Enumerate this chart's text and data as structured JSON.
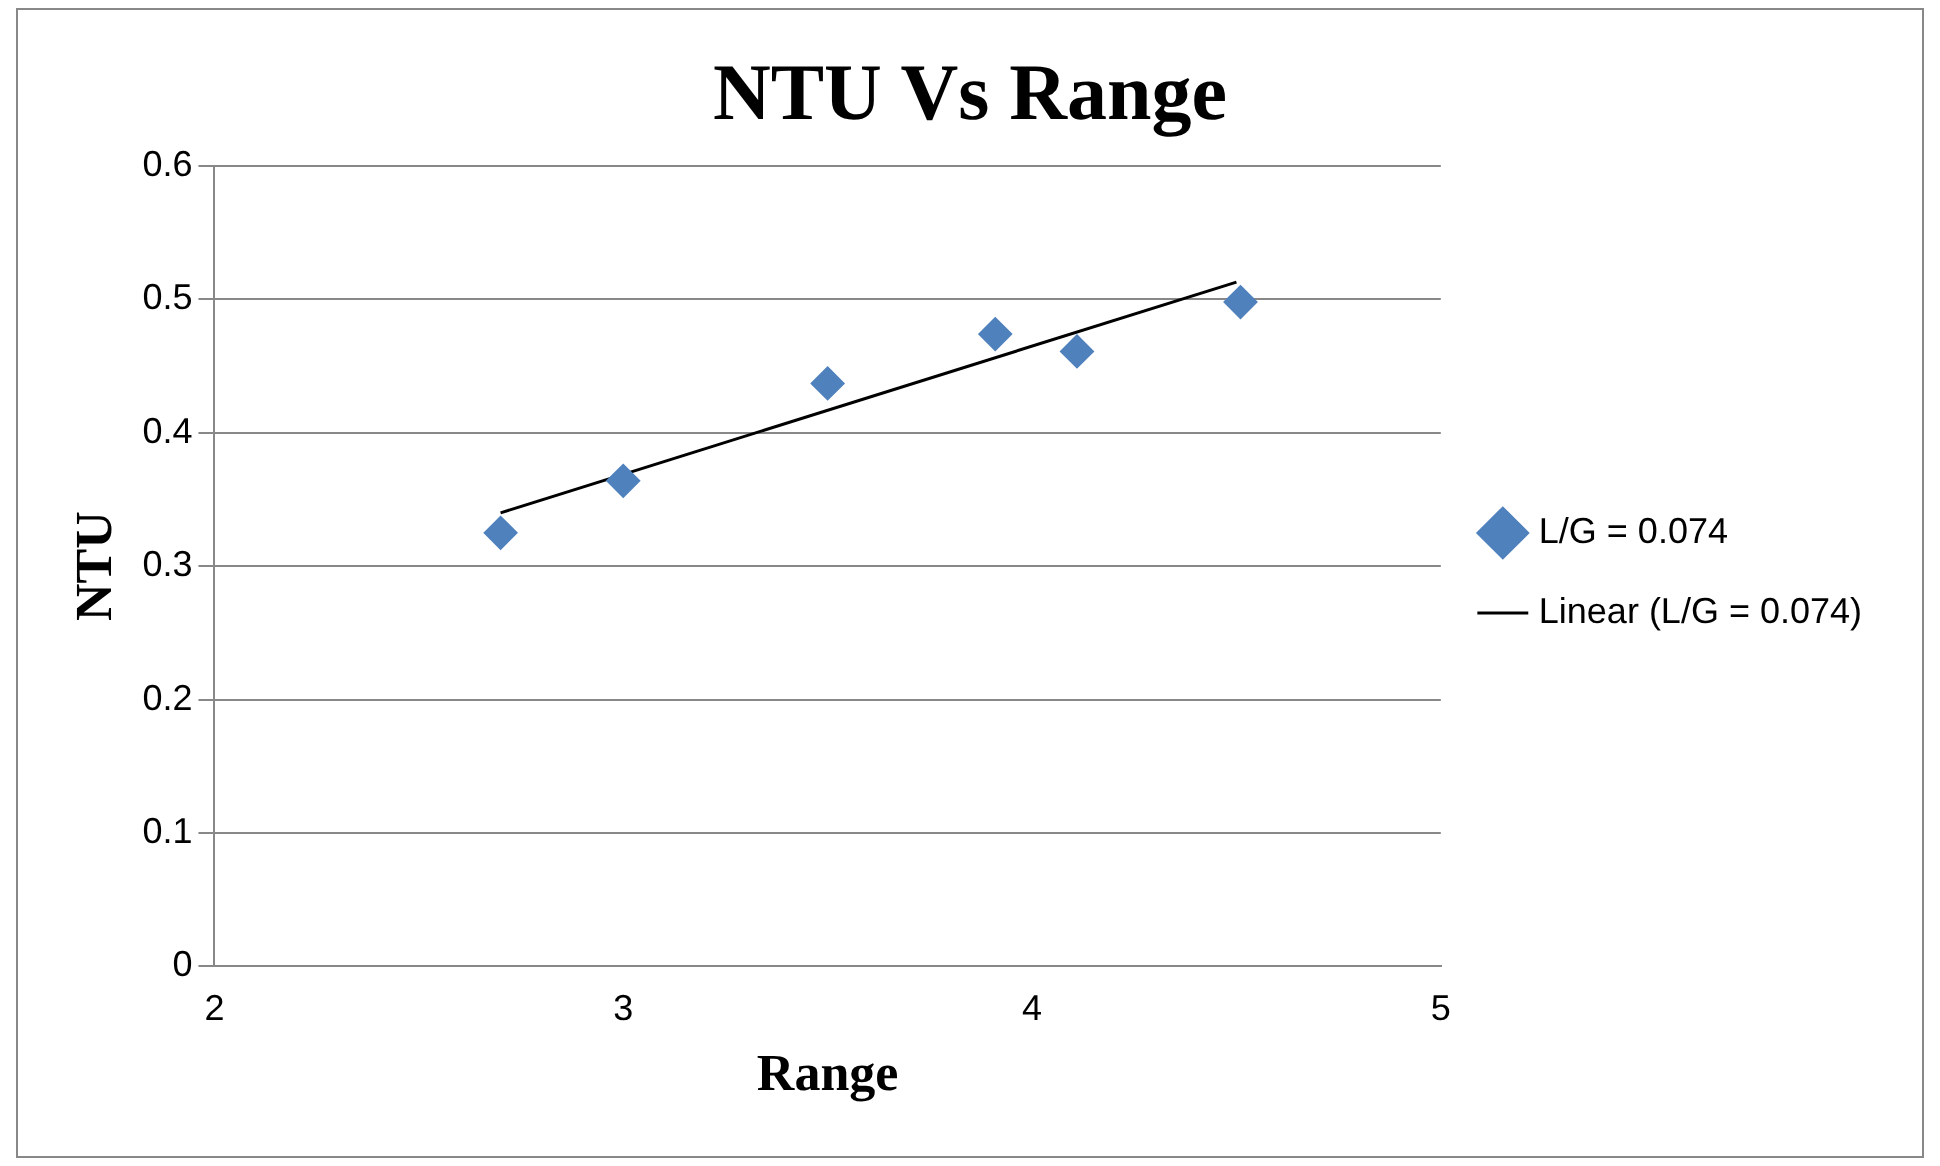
{
  "chart_data": {
    "type": "scatter",
    "title": "NTU Vs Range",
    "xlabel": "Range",
    "ylabel": "NTU",
    "xlim": [
      2,
      5
    ],
    "xticks": [
      2,
      3,
      4,
      5
    ],
    "ylim": [
      0,
      0.6
    ],
    "yticks": [
      0,
      0.1,
      0.2,
      0.3,
      0.4,
      0.5,
      0.6
    ],
    "grid": "y",
    "legend": "right",
    "series": [
      {
        "name": "L/G = 0.074",
        "marker": "diamond",
        "color": "#4f81bd",
        "x": [
          2.7,
          3.0,
          3.5,
          3.91,
          4.11,
          4.51
        ],
        "values": [
          0.325,
          0.364,
          0.437,
          0.474,
          0.461,
          0.498
        ]
      },
      {
        "name": "Linear (L/G = 0.074)",
        "type": "line",
        "color": "#000000",
        "line_style": "solid",
        "marker": "none",
        "x": [
          2.7,
          4.5
        ],
        "values": [
          0.34,
          0.513
        ]
      }
    ]
  }
}
